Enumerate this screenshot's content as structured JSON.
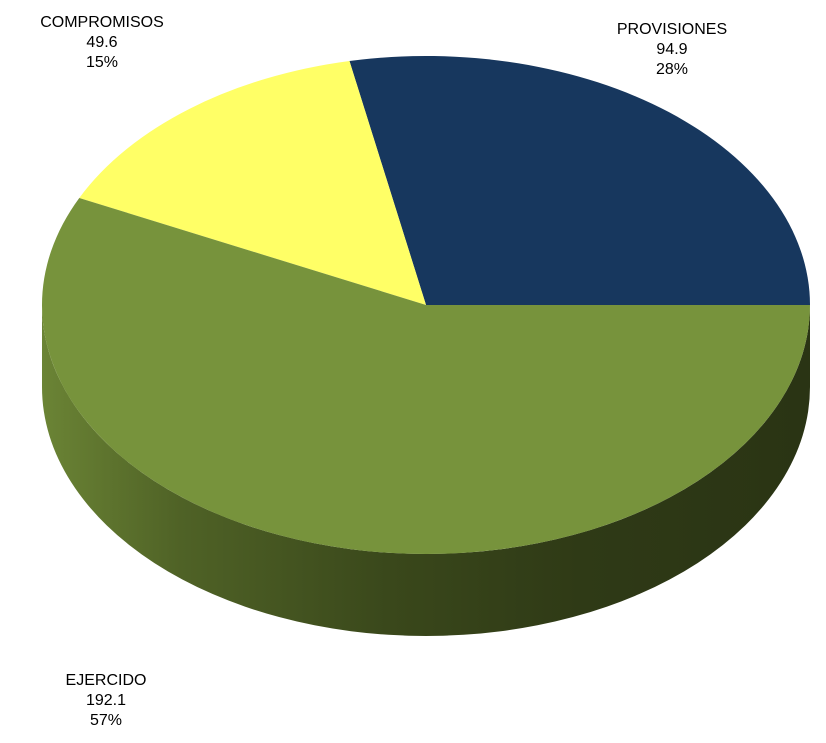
{
  "chart_data": {
    "type": "pie",
    "title": "",
    "three_d": true,
    "slices": [
      {
        "label": "PROVISIONES",
        "value": 94.9,
        "percent": "28%",
        "color": "#17375e"
      },
      {
        "label": "COMPROMISOS",
        "value": 49.6,
        "percent": "15%",
        "color": "#ffff66"
      },
      {
        "label": "EJERCIDO",
        "value": 192.1,
        "percent": "57%",
        "color": "#77933c"
      }
    ],
    "value_labels": [
      "94.9",
      "49.6",
      "192.1"
    ],
    "legend": "none"
  }
}
